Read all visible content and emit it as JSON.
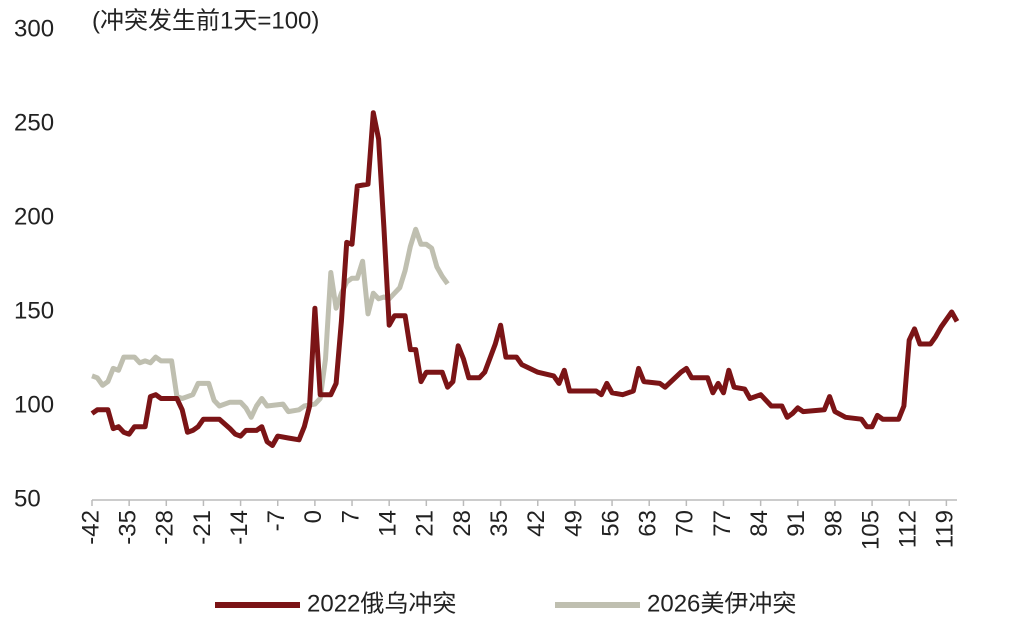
{
  "chart_data": {
    "type": "line",
    "annotation": "(冲突发生前1天=100)",
    "ylim": [
      50,
      300
    ],
    "yticks": [
      50,
      100,
      150,
      200,
      250,
      300
    ],
    "xlim": [
      -42,
      121
    ],
    "xticks": [
      -42,
      -35,
      -28,
      -21,
      -14,
      -7,
      0,
      7,
      14,
      21,
      28,
      35,
      42,
      49,
      56,
      63,
      70,
      77,
      84,
      91,
      98,
      105,
      112,
      119
    ],
    "legend": "bottom",
    "series": [
      {
        "name": "2022俄乌冲突",
        "color": "#7b1416",
        "x": [
          -42,
          -41,
          -39,
          -38,
          -37,
          -36,
          -35,
          -34,
          -32,
          -31,
          -30,
          -29,
          -26,
          -25,
          -24,
          -23,
          -22,
          -21,
          -18,
          -16,
          -15,
          -14,
          -13,
          -11,
          -10,
          -9,
          -8,
          -7,
          -5,
          -3,
          -2,
          -1,
          0,
          1,
          3,
          4,
          5,
          6,
          7,
          8,
          10,
          11,
          12,
          13,
          14,
          15,
          17,
          18,
          19,
          20,
          21,
          24,
          25,
          26,
          27,
          28,
          29,
          31,
          32,
          34,
          35,
          36,
          38,
          39,
          42,
          45,
          46,
          47,
          48,
          53,
          54,
          55,
          56,
          58,
          60,
          61,
          62,
          65,
          66,
          69,
          70,
          71,
          74,
          75,
          76,
          77,
          78,
          79,
          81,
          82,
          84,
          86,
          88,
          89,
          90,
          91,
          92,
          96,
          97,
          98,
          100,
          103,
          104,
          105,
          106,
          107,
          110,
          111,
          112,
          113,
          114,
          116,
          117,
          118,
          119,
          120,
          121
        ],
        "values": [
          96,
          98,
          98,
          88,
          89,
          86,
          85,
          89,
          89,
          105,
          106,
          104,
          104,
          98,
          86,
          87,
          89,
          93,
          93,
          88,
          85,
          84,
          87,
          87,
          89,
          81,
          79,
          84,
          83,
          82,
          89,
          100,
          152,
          106,
          106,
          112,
          145,
          187,
          186,
          217,
          218,
          256,
          242,
          195,
          143,
          148,
          148,
          130,
          130,
          113,
          118,
          118,
          110,
          113,
          132,
          125,
          115,
          115,
          118,
          133,
          143,
          126,
          126,
          122,
          118,
          116,
          112,
          119,
          108,
          108,
          106,
          112,
          107,
          106,
          108,
          120,
          113,
          112,
          110,
          118,
          120,
          115,
          115,
          107,
          112,
          107,
          119,
          110,
          109,
          104,
          106,
          100,
          100,
          94,
          96,
          99,
          97,
          98,
          105,
          97,
          94,
          93,
          89,
          89,
          95,
          93,
          93,
          100,
          135,
          141,
          133,
          133,
          137,
          142,
          146,
          150,
          145
        ]
      },
      {
        "name": "2026美伊冲突",
        "color": "#bfbfb0",
        "x": [
          -42,
          -41,
          -40,
          -39,
          -38,
          -37,
          -36,
          -34,
          -33,
          -32,
          -31,
          -30,
          -29,
          -27,
          -26,
          -25,
          -23,
          -22,
          -20,
          -19,
          -18,
          -16,
          -14,
          -13,
          -12,
          -11,
          -10,
          -9,
          -6,
          -5,
          -3,
          -2,
          0,
          1,
          2,
          3,
          4,
          5,
          6,
          7,
          8,
          9,
          10,
          11,
          12,
          13,
          14,
          15,
          16,
          17,
          18,
          19,
          20,
          21,
          22,
          23,
          24,
          25
        ],
        "values": [
          116,
          115,
          111,
          113,
          120,
          119,
          126,
          126,
          123,
          124,
          123,
          126,
          124,
          124,
          105,
          104,
          106,
          112,
          112,
          103,
          100,
          102,
          102,
          99,
          94,
          100,
          104,
          100,
          101,
          97,
          98,
          100,
          101,
          104,
          125,
          171,
          152,
          160,
          166,
          168,
          168,
          177,
          149,
          160,
          157,
          158,
          157,
          160,
          163,
          172,
          185,
          194,
          186,
          186,
          184,
          174,
          169,
          165
        ]
      }
    ]
  }
}
